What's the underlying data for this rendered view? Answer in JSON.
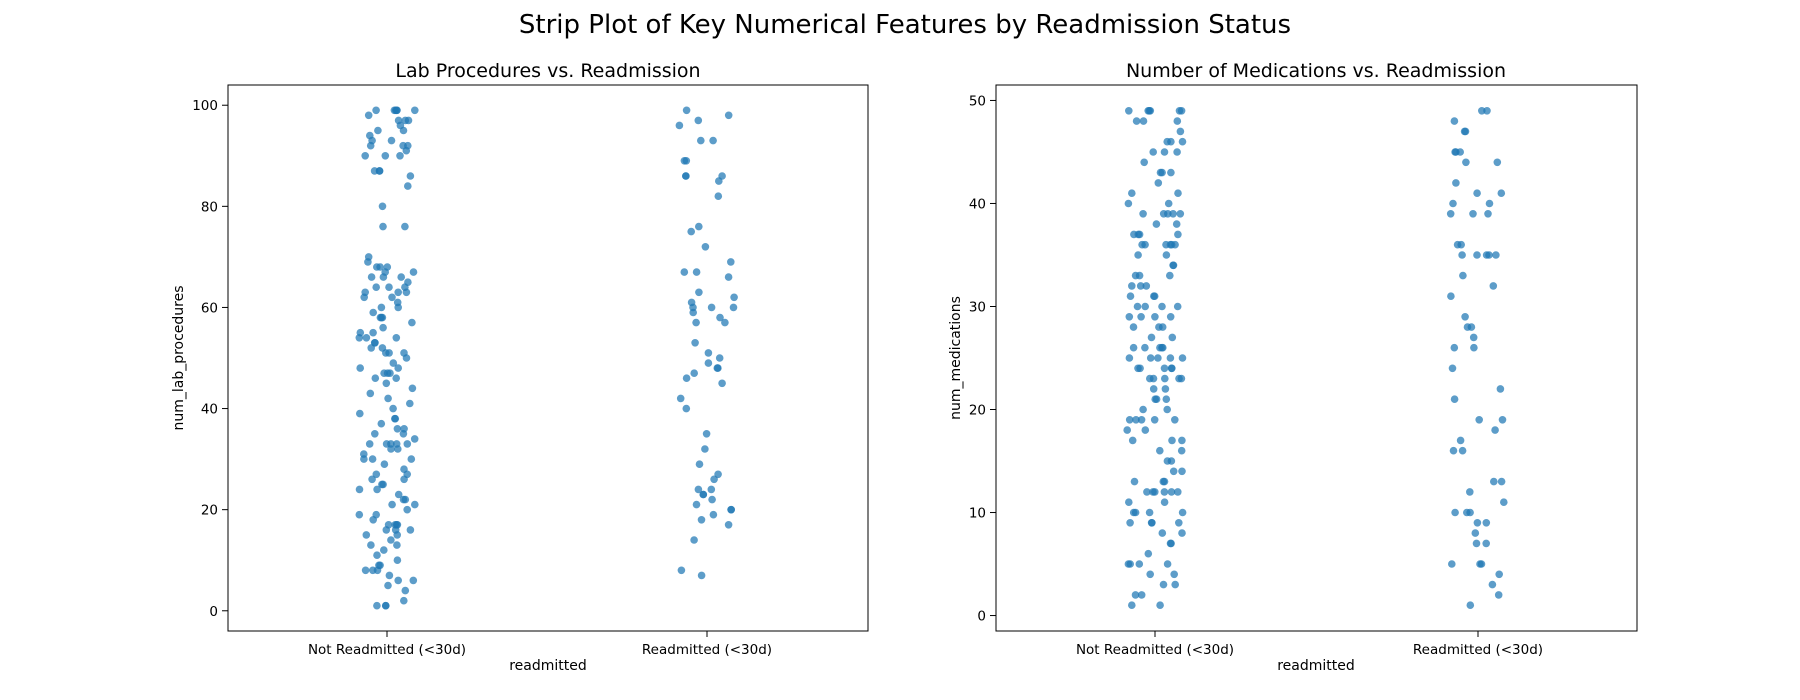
{
  "suptitle": "Strip Plot of Key Numerical Features by Readmission Status",
  "colors": {
    "points": "#1f77b4"
  },
  "chart_data": [
    {
      "type": "scatter",
      "subtype": "strip",
      "title": "Lab Procedures vs. Readmission",
      "xlabel": "readmitted",
      "ylabel": "num_lab_procedures",
      "categories": [
        "Not Readmitted (<30d)",
        "Readmitted (<30d)"
      ],
      "ylim": [
        -4,
        104
      ],
      "yticks": [
        0,
        20,
        40,
        60,
        80,
        100
      ],
      "grid": false,
      "series": [
        {
          "category": "Not Readmitted (<30d)",
          "values": [
            99,
            99,
            99,
            99,
            99,
            99,
            98,
            97,
            97,
            97,
            96,
            95,
            95,
            94,
            93,
            93,
            92,
            92,
            92,
            91,
            90,
            90,
            90,
            87,
            87,
            87,
            86,
            84,
            80,
            76,
            76,
            70,
            69,
            68,
            68,
            68,
            67,
            67,
            66,
            66,
            66,
            65,
            64,
            64,
            64,
            63,
            63,
            63,
            62,
            62,
            61,
            60,
            60,
            59,
            58,
            58,
            58,
            57,
            56,
            55,
            55,
            54,
            54,
            54,
            53,
            53,
            52,
            52,
            51,
            51,
            51,
            50,
            49,
            48,
            48,
            47,
            47,
            47,
            46,
            46,
            45,
            44,
            43,
            42,
            41,
            40,
            39,
            38,
            38,
            37,
            36,
            36,
            35,
            35,
            34,
            33,
            33,
            33,
            33,
            33,
            32,
            32,
            31,
            30,
            30,
            30,
            29,
            28,
            27,
            27,
            26,
            26,
            25,
            25,
            24,
            24,
            23,
            22,
            22,
            21,
            21,
            20,
            19,
            19,
            18,
            17,
            17,
            17,
            17,
            16,
            16,
            16,
            15,
            15,
            14,
            13,
            13,
            12,
            11,
            10,
            9,
            9,
            8,
            8,
            8,
            7,
            6,
            6,
            5,
            4,
            2,
            1,
            1,
            1
          ]
        },
        {
          "category": "Readmitted (<30d)",
          "values": [
            99,
            98,
            97,
            96,
            93,
            93,
            89,
            89,
            86,
            86,
            86,
            85,
            82,
            76,
            75,
            72,
            69,
            67,
            67,
            66,
            63,
            62,
            61,
            60,
            60,
            60,
            59,
            58,
            57,
            57,
            53,
            51,
            50,
            49,
            48,
            48,
            47,
            46,
            45,
            42,
            40,
            35,
            32,
            29,
            27,
            26,
            24,
            24,
            23,
            23,
            22,
            21,
            20,
            20,
            19,
            18,
            17,
            14,
            8,
            7
          ]
        }
      ]
    },
    {
      "type": "scatter",
      "subtype": "strip",
      "title": "Number of Medications vs. Readmission",
      "xlabel": "readmitted",
      "ylabel": "num_medications",
      "categories": [
        "Not Readmitted (<30d)",
        "Readmitted (<30d)"
      ],
      "ylim": [
        -1.5,
        51.5
      ],
      "yticks": [
        0,
        10,
        20,
        30,
        40,
        50
      ],
      "grid": false,
      "series": [
        {
          "category": "Not Readmitted (<30d)",
          "values": [
            49,
            49,
            49,
            49,
            49,
            49,
            48,
            48,
            48,
            47,
            46,
            46,
            46,
            45,
            45,
            45,
            44,
            43,
            43,
            43,
            42,
            41,
            41,
            40,
            40,
            39,
            39,
            39,
            39,
            39,
            38,
            38,
            37,
            37,
            37,
            37,
            36,
            36,
            36,
            36,
            36,
            36,
            35,
            35,
            34,
            34,
            33,
            33,
            33,
            32,
            32,
            32,
            31,
            31,
            31,
            30,
            30,
            30,
            30,
            29,
            29,
            29,
            29,
            28,
            28,
            28,
            27,
            27,
            26,
            26,
            26,
            26,
            26,
            25,
            25,
            25,
            25,
            25,
            24,
            24,
            24,
            24,
            24,
            23,
            23,
            23,
            23,
            23,
            22,
            22,
            21,
            21,
            21,
            20,
            20,
            19,
            19,
            19,
            19,
            19,
            18,
            18,
            17,
            17,
            17,
            16,
            16,
            15,
            15,
            14,
            14,
            13,
            13,
            13,
            12,
            12,
            12,
            12,
            12,
            12,
            11,
            11,
            10,
            10,
            10,
            10,
            9,
            9,
            9,
            9,
            8,
            8,
            7,
            7,
            6,
            5,
            5,
            5,
            5,
            4,
            4,
            3,
            3,
            2,
            2,
            1,
            1
          ]
        },
        {
          "category": "Readmitted (<30d)",
          "values": [
            49,
            49,
            48,
            47,
            47,
            45,
            45,
            45,
            44,
            44,
            42,
            41,
            41,
            40,
            40,
            39,
            39,
            39,
            36,
            36,
            35,
            35,
            35,
            35,
            35,
            33,
            32,
            31,
            29,
            28,
            28,
            27,
            26,
            26,
            24,
            22,
            21,
            19,
            19,
            18,
            17,
            16,
            16,
            13,
            13,
            12,
            11,
            10,
            10,
            10,
            9,
            9,
            8,
            7,
            7,
            5,
            5,
            5,
            4,
            3,
            2,
            1
          ]
        }
      ]
    }
  ]
}
